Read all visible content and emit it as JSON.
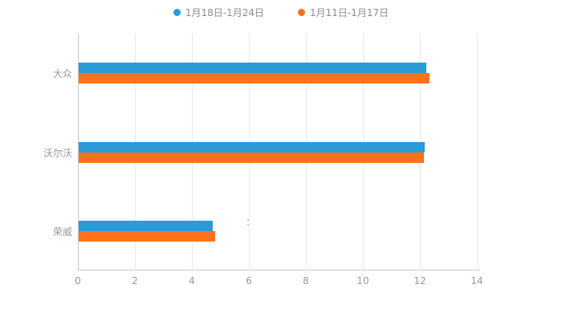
{
  "chart_data": {
    "type": "bar",
    "orientation": "horizontal",
    "title": "",
    "categories": [
      "大众",
      "沃尔沃",
      "荣威"
    ],
    "series": [
      {
        "name": "1月18日-1月24日",
        "color": "#2b9bd7",
        "values": [
          12.2,
          12.15,
          4.7
        ]
      },
      {
        "name": "1月11日-1月17日",
        "color": "#ff7119",
        "values": [
          12.3,
          12.1,
          4.8
        ]
      }
    ],
    "xlim": [
      0,
      14
    ],
    "xticks": [
      0,
      2,
      4,
      6,
      8,
      10,
      12,
      14
    ],
    "grid": true,
    "legend_position": "top",
    "colors": {
      "axis_line": "#c6c6c6",
      "gridline": "#e8e8e8",
      "label_text": "#999999",
      "legend_text": "#8c8c8c"
    }
  },
  "stray_mark": "："
}
